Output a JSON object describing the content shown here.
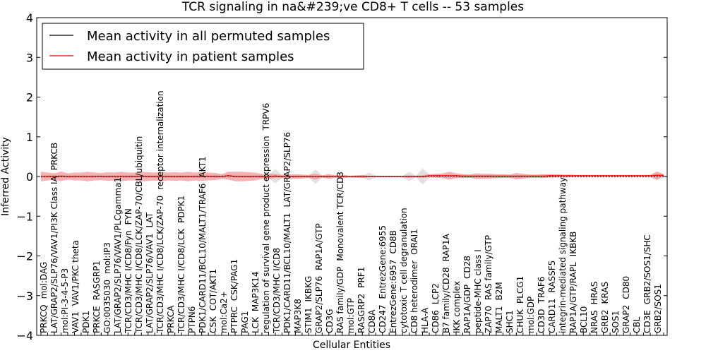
{
  "chart_data": {
    "type": "line",
    "title": "TCR signaling in na&#239;ve CD8+ T cells -- 53 samples",
    "xlabel": "Cellular Entities",
    "ylabel": "Inferred Activity",
    "ylim": [
      -4,
      4
    ],
    "yticks": [
      "−4",
      "−3",
      "−2",
      "−1",
      "0",
      "1",
      "2",
      "3",
      "4"
    ],
    "yticks_values": [
      -4,
      -3,
      -2,
      -1,
      0,
      1,
      2,
      3,
      4
    ],
    "legend_position": "top-left",
    "colors": {
      "permuted": "#000000",
      "patient": "#ff0000",
      "patient_band": "#f08080",
      "permuted_band": "#c8c8c8"
    },
    "categories": [
      "PRKCQ",
      "mol:DAG",
      "LAT/GRAP2/SLP76/VAV1/PI3K Class IA",
      "PRKCB",
      "mol:PI-3-4-5-P3",
      "VAV1",
      "VAV1/PKC theta",
      "PDK1",
      "PRKCE",
      "RASGRP1",
      "GO:0035030",
      "mol:IP3",
      "LAT/GRAP2/SLP76/VAV1/PLCgamma1",
      "TCR/CD3/MHC I/CD8/Fyn",
      "FYN",
      "TCR/CD3/MHC I/CD8/LCK/ZAP-70/CBL/ubiquitin",
      "LAT/GRAP2/SLP76/VAV1",
      "LAT",
      "TCR/CD3/MHC I/CD8/LCK/ZAP-70",
      "receptor internalization",
      "PRKCA",
      "TCR/CD3/MHC I/CD8/LCK",
      "PDPK1",
      "PTPN6",
      "PDK1/CARD11/BCL10/MALT1/TRAF6",
      "AKT1",
      "CSK",
      "COT/AKT1",
      "mol:Ca2+",
      "PTPRC",
      "CSK/PAG1",
      "PAG1",
      "LCK",
      "MAP3K14",
      "regulation of survival gene product expression",
      "TRPV6",
      "TCR/CD3/MHC I/CD8",
      "PDK1/CARD11/BCL10/MALT1",
      "LAT/GRAP2/SLP76",
      "MAP3K8",
      "STIM1",
      "IKBKG",
      "GRAP2/SLP76",
      "RAP1A/GTP",
      "CD3G",
      "RAS family/GDP",
      "Monovalent TCR/CD3",
      "mol:GTP",
      "RASGRP2",
      "PRF1",
      "CD8A",
      "CD247",
      "EntrezGene:6955",
      "EntrezGene:6957",
      "CD8B",
      "cytotoxic T cell degranulation",
      "CD8 heterodimer",
      "ORAI1",
      "HLA-A",
      "CD86",
      "LCP2",
      "B7 family/CD28",
      "RAP1A",
      "IKK complex",
      "RAP1A/GDP",
      "CD28",
      "peptide-MHC class I",
      "ZAP70",
      "RAS family/GTP",
      "MALT1",
      "B2M",
      "SHC1",
      "CHUK",
      "PLCG1",
      "mol:GDP",
      "CD3D",
      "TRAF6",
      "CARD11",
      "RASSF5",
      "integrin-mediated signaling pathway",
      "RAP1A/GTP/RAPL",
      "IKBKB",
      "BCL10",
      "NRAS",
      "HRAS",
      "GRB2",
      "KRAS",
      "SOS1",
      "GRAP2",
      "CD80",
      "CBL",
      "CD3E",
      "GRB2/SOS1/SHC",
      "GRB2/SOS1"
    ],
    "series": [
      {
        "name": "Mean activity in all permuted samples",
        "values": [
          0,
          0,
          0,
          0,
          0,
          0,
          0,
          0,
          0,
          0,
          0,
          0,
          0,
          0,
          0,
          0,
          0,
          0,
          0,
          0,
          0,
          0,
          0,
          0,
          0,
          0,
          0,
          0,
          0.02,
          0,
          0,
          0,
          0,
          0,
          0,
          0.01,
          0,
          0,
          0,
          0,
          0,
          0,
          0,
          0,
          0,
          0,
          0,
          0,
          0,
          0,
          0,
          0,
          0,
          0,
          0,
          0,
          0,
          0,
          0.01,
          0.01,
          0.01,
          0.01,
          0.01,
          0,
          0,
          0,
          0,
          0,
          0,
          0,
          0,
          0,
          0,
          0,
          0,
          0,
          0,
          0,
          0,
          0,
          0,
          0,
          0,
          0,
          0,
          0,
          0,
          0,
          0,
          0,
          0,
          0,
          0,
          0
        ],
        "spread": [
          0.04,
          0.04,
          0.04,
          0.04,
          0.04,
          0.04,
          0.04,
          0.04,
          0.04,
          0.04,
          0.04,
          0.04,
          0.04,
          0.04,
          0.04,
          0.04,
          0.04,
          0.04,
          0.04,
          0.04,
          0.04,
          0.04,
          0.04,
          0.04,
          0.04,
          0.04,
          0.04,
          0.04,
          0.04,
          0.04,
          0.04,
          0.04,
          0.04,
          0.04,
          0.04,
          0.18,
          0.04,
          0.03,
          0.03,
          0.03,
          0.03,
          0.18,
          0.03,
          0.03,
          0.03,
          0.02,
          0.02,
          0.02,
          0.02,
          0.1,
          0.02,
          0.02,
          0.02,
          0.02,
          0.02,
          0.12,
          0.02,
          0.2,
          0.04,
          0.04,
          0.04,
          0.04,
          0.04,
          0.04,
          0.04,
          0.04,
          0.04,
          0.04,
          0.04,
          0.04,
          0.04,
          0.04,
          0.04,
          0.04,
          0.04,
          0.04,
          0.04,
          0.04,
          0.03,
          0.03,
          0.03,
          0.03,
          0.03,
          0.03,
          0.03,
          0.03,
          0.03,
          0.03,
          0.03,
          0.03,
          0.03,
          0.03,
          0.1,
          0.03
        ]
      },
      {
        "name": "Mean activity in patient samples",
        "values": [
          0,
          0,
          0,
          0.01,
          0,
          0,
          0,
          0,
          0,
          0,
          0,
          0,
          0,
          0,
          0,
          0,
          0,
          0,
          0,
          0,
          0,
          0,
          0,
          0,
          0,
          0,
          0,
          0,
          0.02,
          0,
          0,
          0,
          0,
          0,
          0,
          0.01,
          0,
          0,
          0,
          0,
          0,
          0,
          0,
          0,
          0,
          0,
          0,
          0,
          0,
          0,
          0,
          0,
          0,
          0,
          0,
          0,
          0,
          0,
          0.02,
          0.02,
          0.02,
          0.02,
          0.02,
          0.01,
          0.01,
          0.01,
          0.01,
          0.01,
          0.01,
          0.01,
          0.01,
          0.01,
          0.01,
          0.01,
          0.01,
          0.01,
          0.02,
          0.02,
          0.02,
          0.02,
          0.02,
          0.02,
          0.02,
          0.02,
          0.02,
          0.02,
          0.02,
          0.02,
          0.02,
          0.02,
          0.02,
          0.02,
          0.03,
          0.03
        ],
        "spread": [
          0.12,
          0.1,
          0.08,
          0.12,
          0.08,
          0.1,
          0.1,
          0.12,
          0.1,
          0.09,
          0.11,
          0.1,
          0.12,
          0.1,
          0.1,
          0.12,
          0.11,
          0.1,
          0.12,
          0.1,
          0.11,
          0.1,
          0.12,
          0.1,
          0.11,
          0.1,
          0.09,
          0.06,
          0.1,
          0.12,
          0.12,
          0.11,
          0.1,
          0.06,
          0.07,
          0.05,
          0.04,
          0.05,
          0.06,
          0.05,
          0.04,
          0.07,
          0.03,
          0.06,
          0.03,
          0.05,
          0.02,
          0.03,
          0.04,
          0.02,
          0.02,
          0.02,
          0.02,
          0.02,
          0.02,
          0.03,
          0.02,
          0.03,
          0.04,
          0.05,
          0.06,
          0.1,
          0.06,
          0.05,
          0.04,
          0.07,
          0.06,
          0.06,
          0.05,
          0.05,
          0.04,
          0.08,
          0.06,
          0.04,
          0.04,
          0.05,
          0.04,
          0.04,
          0.03,
          0.03,
          0.02,
          0.02,
          0.02,
          0.02,
          0.02,
          0.02,
          0.02,
          0.02,
          0.02,
          0.02,
          0.02,
          0.02,
          0.1,
          0.03
        ]
      }
    ]
  }
}
